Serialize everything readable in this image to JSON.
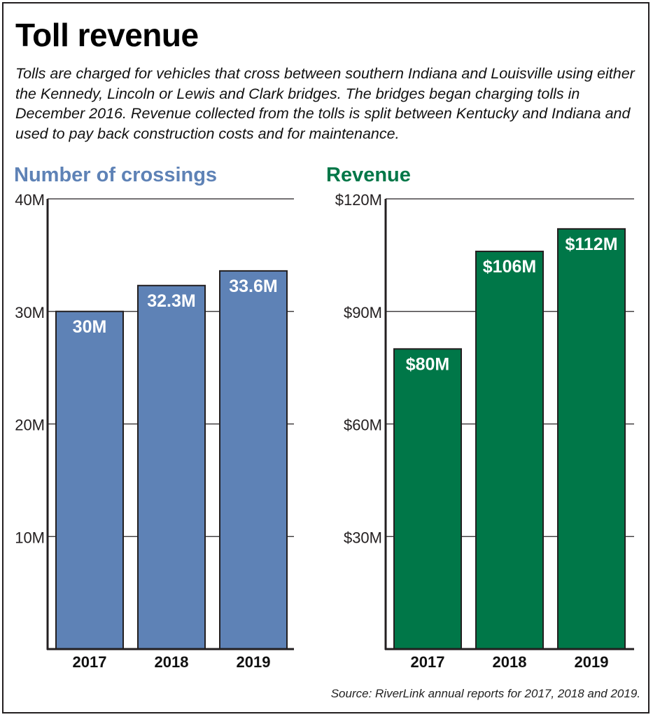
{
  "title": "Toll revenue",
  "subtitle": "Tolls are charged for vehicles that cross between southern Indiana and Louisville using either the Kennedy, Lincoln or Lewis and Clark bridges. The bridges began charging tolls in December 2016. Revenue collected from the tolls is split between Kentucky and Indiana and used to pay back construction costs and for maintenance.",
  "source": "Source: RiverLink annual reports for 2017, 2018 and 2019.",
  "colors": {
    "crossings": "#5e82b6",
    "revenue": "#007748"
  },
  "chart_data": [
    {
      "type": "bar",
      "title": "Number of crossings",
      "categories": [
        "2017",
        "2018",
        "2019"
      ],
      "values": [
        30,
        32.3,
        33.6
      ],
      "value_labels": [
        "30M",
        "32.3M",
        "33.6M"
      ],
      "ylim": [
        0,
        40
      ],
      "yticks": [
        10,
        20,
        30,
        40
      ],
      "ytick_labels": [
        "10M",
        "20M",
        "30M",
        "40M"
      ],
      "grid": true,
      "xlabel": "",
      "ylabel": ""
    },
    {
      "type": "bar",
      "title": "Revenue",
      "categories": [
        "2017",
        "2018",
        "2019"
      ],
      "values": [
        80,
        106,
        112
      ],
      "value_labels": [
        "$80M",
        "$106M",
        "$112M"
      ],
      "ylim": [
        0,
        120
      ],
      "yticks": [
        30,
        60,
        90,
        120
      ],
      "ytick_labels": [
        "$30M",
        "$60M",
        "$90M",
        "$120M"
      ],
      "grid": true,
      "xlabel": "",
      "ylabel": ""
    }
  ]
}
